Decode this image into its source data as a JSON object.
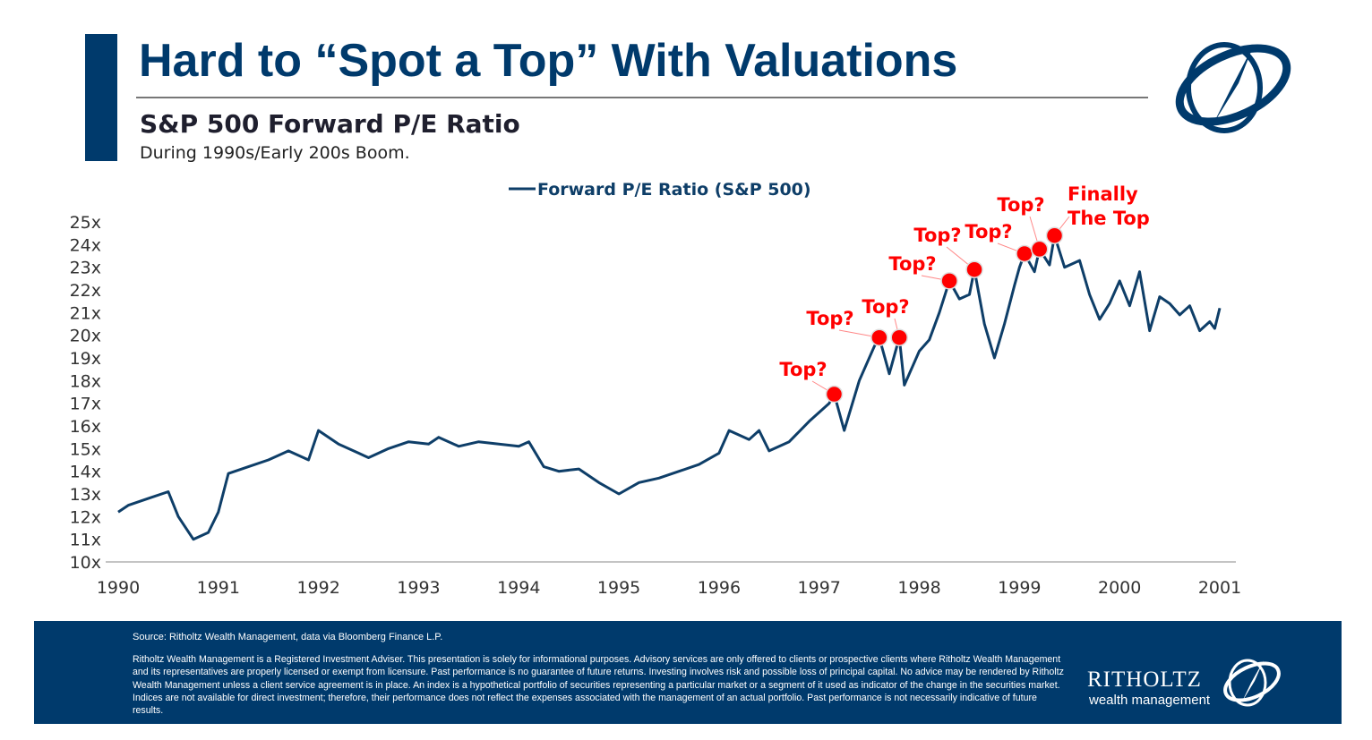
{
  "header": {
    "title": "Hard to “Spot a Top” With Valuations",
    "subtitle": "S&P 500 Forward P/E Ratio",
    "description": "During 1990s/Early 200s Boom."
  },
  "chart_data": {
    "type": "line",
    "title": "",
    "xlabel": "",
    "ylabel": "",
    "xlim": [
      1990,
      2001
    ],
    "ylim": [
      10,
      25
    ],
    "x_ticks": [
      "1990",
      "1991",
      "1992",
      "1993",
      "1994",
      "1995",
      "1996",
      "1997",
      "1998",
      "1999",
      "2000",
      "2001"
    ],
    "y_ticks": [
      "10x",
      "11x",
      "12x",
      "13x",
      "14x",
      "15x",
      "16x",
      "17x",
      "18x",
      "19x",
      "20x",
      "21x",
      "22x",
      "23x",
      "24x",
      "25x"
    ],
    "grid": false,
    "legend_position": "top",
    "series": [
      {
        "name": "Forward P/E Ratio (S&P 500)",
        "color": "#0e3e68",
        "x": [
          1990.0,
          1990.1,
          1990.3,
          1990.5,
          1990.6,
          1990.75,
          1990.9,
          1991.0,
          1991.1,
          1991.3,
          1991.5,
          1991.7,
          1991.9,
          1992.0,
          1992.2,
          1992.4,
          1992.5,
          1992.7,
          1992.9,
          1993.1,
          1993.2,
          1993.4,
          1993.6,
          1993.8,
          1994.0,
          1994.1,
          1994.25,
          1994.4,
          1994.6,
          1994.8,
          1995.0,
          1995.2,
          1995.4,
          1995.6,
          1995.8,
          1996.0,
          1996.1,
          1996.3,
          1996.4,
          1996.5,
          1996.7,
          1996.9,
          1997.1,
          1997.15,
          1997.25,
          1997.4,
          1997.55,
          1997.6,
          1997.7,
          1997.8,
          1997.85,
          1998.0,
          1998.1,
          1998.2,
          1998.3,
          1998.4,
          1998.5,
          1998.55,
          1998.65,
          1998.75,
          1998.85,
          1998.95,
          1999.0,
          1999.05,
          1999.15,
          1999.2,
          1999.3,
          1999.35,
          1999.45,
          1999.6,
          1999.7,
          1999.8,
          1999.9,
          2000.0,
          2000.1,
          2000.2,
          2000.3,
          2000.4,
          2000.5,
          2000.6,
          2000.7,
          2000.8,
          2000.9,
          2000.95,
          2001.0
        ],
        "values": [
          12.2,
          12.5,
          12.8,
          13.1,
          12.0,
          11.0,
          11.3,
          12.2,
          13.9,
          14.2,
          14.5,
          14.9,
          14.5,
          15.8,
          15.2,
          14.8,
          14.6,
          15.0,
          15.3,
          15.2,
          15.5,
          15.1,
          15.3,
          15.2,
          15.1,
          15.3,
          14.2,
          14.0,
          14.1,
          13.5,
          13.0,
          13.5,
          13.7,
          14.0,
          14.3,
          14.8,
          15.8,
          15.4,
          15.8,
          14.9,
          15.3,
          16.2,
          17.0,
          17.4,
          15.8,
          18.0,
          19.5,
          19.9,
          18.3,
          19.9,
          17.8,
          19.3,
          19.8,
          21.0,
          22.4,
          21.6,
          21.8,
          22.9,
          20.5,
          19.0,
          20.5,
          22.2,
          23.0,
          23.6,
          22.8,
          23.8,
          23.1,
          24.4,
          23.0,
          23.3,
          21.8,
          20.7,
          21.4,
          22.4,
          21.3,
          22.8,
          20.2,
          21.7,
          21.4,
          20.9,
          21.3,
          20.2,
          20.6,
          20.3,
          21.2
        ]
      }
    ],
    "annotations": [
      {
        "label": "Top?",
        "x": 1997.15,
        "y": 17.4
      },
      {
        "label": "Top?",
        "x": 1997.6,
        "y": 19.9
      },
      {
        "label": "Top?",
        "x": 1997.8,
        "y": 19.9
      },
      {
        "label": "Top?",
        "x": 1998.3,
        "y": 22.4
      },
      {
        "label": "Top?",
        "x": 1998.55,
        "y": 22.9
      },
      {
        "label": "Top?",
        "x": 1999.05,
        "y": 23.6
      },
      {
        "label": "Top?",
        "x": 1999.2,
        "y": 23.8
      },
      {
        "label": "Finally The Top",
        "x": 1999.35,
        "y": 24.4
      }
    ],
    "annotation_color": "#ff0000"
  },
  "footer": {
    "source": "Source: Ritholtz Wealth Management, data via Bloomberg Finance L.P.",
    "disclaimer": "Ritholtz Wealth Management is a Registered Investment Adviser. This presentation is solely for informational purposes. Advisory services are only offered to clients or prospective clients where Ritholtz Wealth Management and its representatives are properly licensed or exempt from licensure. Past performance is no guarantee of future returns. Investing involves risk and possible loss of principal capital. No advice may be rendered by Ritholtz Wealth Management unless a client service agreement is in place. An index is a hypothetical portfolio of securities representing a particular market or a segment of it used as indicator of the change in the securities market. Indices are not available for direct investment; therefore, their performance does not reflect the expenses associated with the management of an actual portfolio. Past performance is not necessarily indicative of future results.",
    "brand_name": "RITHOLTZ",
    "brand_tagline": "wealth management"
  }
}
